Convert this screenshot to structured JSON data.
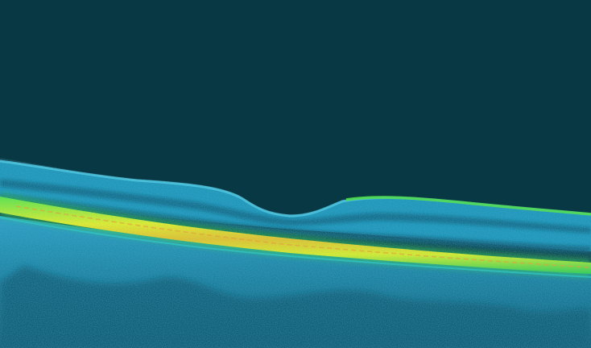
{
  "image": {
    "subject": "retinal-oct-b-scan",
    "palette": {
      "vitreous": "#093845",
      "retina_dark": "#0c6e8a",
      "retina_mid": "#1f9fc4",
      "retina_bright": "#35b9d8",
      "rpe_yellow": "#f2f21a",
      "rpe_green": "#3be12f",
      "rpe_core": "#ff9a1f",
      "choroid": "#1b86a9"
    }
  }
}
